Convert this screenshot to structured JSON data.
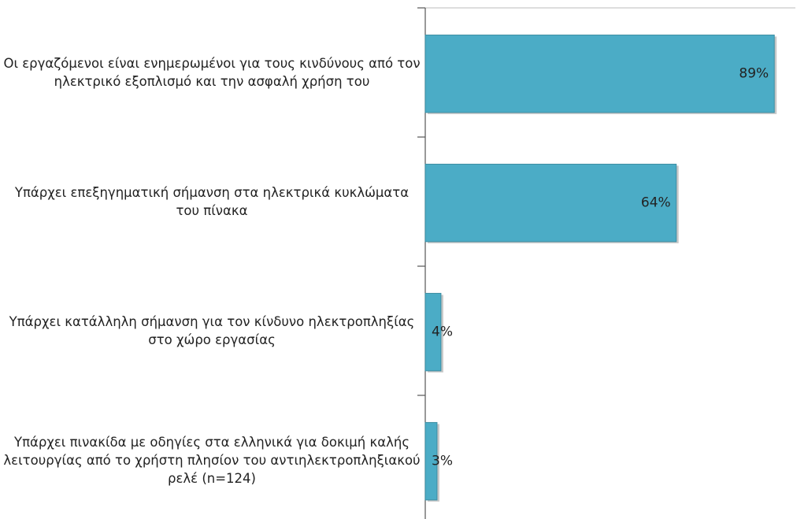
{
  "chart_data": {
    "type": "bar",
    "orientation": "horizontal",
    "categories": [
      "Οι εργαζόμενοι είναι ενημερωμένοι για τους κινδύνους από τον ηλεκτρικό εξοπλισμό και την ασφαλή χρήση του",
      "Υπάρχει επεξηγηματική σήμανση στα ηλεκτρικά κυκλώματα του πίνακα",
      "Υπάρχει κατάλληλη σήμανση για τον κίνδυνο ηλεκτροπληξίας στο χώρο εργασίας",
      "Υπάρχει πινακίδα με οδηγίες στα ελληνικά για δοκιμή καλής λειτουργίας από το χρήστη πλησίον του αντιηλεκτροπληξιακού ρελέ (n=124)"
    ],
    "values": [
      89,
      64,
      4,
      3
    ],
    "value_labels": [
      "89%",
      "64%",
      "4%",
      "3%"
    ],
    "color": "#4bacc6",
    "xlim": [
      0,
      100
    ]
  }
}
